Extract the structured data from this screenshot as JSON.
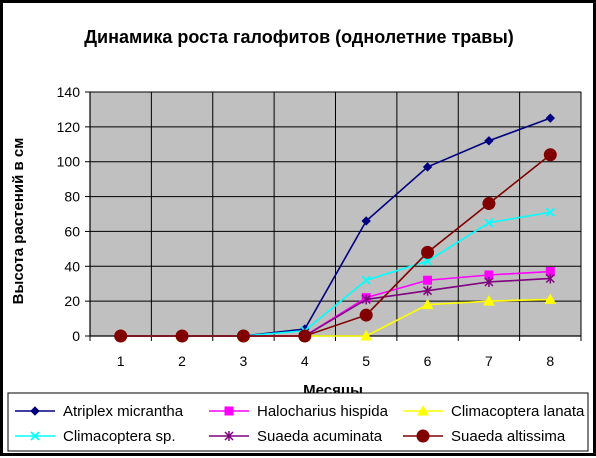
{
  "chart_data": {
    "type": "line",
    "title": "Динамика роста галофитов (однолетние травы)",
    "xlabel": "Месяцы",
    "ylabel": "Высота растений в см",
    "categories": [
      "1",
      "2",
      "3",
      "4",
      "5",
      "6",
      "7",
      "8"
    ],
    "ylim": [
      0,
      140
    ],
    "yticks": [
      0,
      20,
      40,
      60,
      80,
      100,
      120,
      140
    ],
    "grid": true,
    "plot_background": "#c0c0c0",
    "legend_position": "bottom",
    "series": [
      {
        "name": "Atriplex micrantha",
        "color": "#000080",
        "marker": "diamond",
        "values": [
          0,
          0,
          0,
          4,
          66,
          97,
          112,
          125
        ]
      },
      {
        "name": "Halocharius hispida",
        "color": "#ff00ff",
        "marker": "square",
        "values": [
          0,
          0,
          0,
          0,
          22,
          32,
          35,
          37
        ]
      },
      {
        "name": "Climacoptera lanata",
        "color": "#ffff00",
        "marker": "triangle",
        "values": [
          0,
          0,
          0,
          0,
          0,
          18,
          20,
          21
        ]
      },
      {
        "name": "Climacoptera sp.",
        "color": "#00ffff",
        "marker": "x",
        "values": [
          0,
          0,
          0,
          3,
          32,
          43,
          65,
          71
        ]
      },
      {
        "name": "Suaeda acuminata",
        "color": "#800080",
        "marker": "star",
        "values": [
          0,
          0,
          0,
          0,
          21,
          26,
          31,
          33
        ]
      },
      {
        "name": "Suaeda altissima",
        "color": "#800000",
        "marker": "circle",
        "values": [
          0,
          0,
          0,
          0,
          12,
          48,
          76,
          104
        ]
      }
    ]
  }
}
